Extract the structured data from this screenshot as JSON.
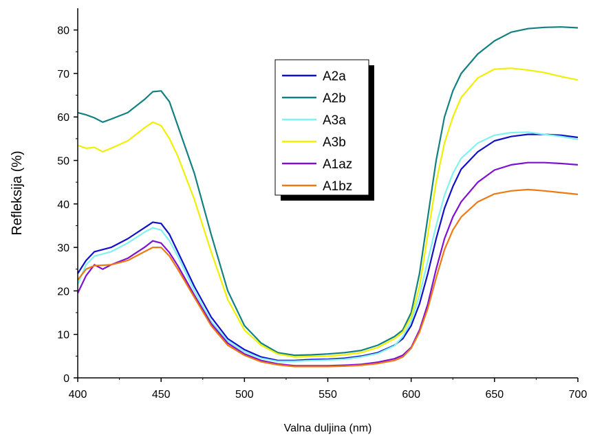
{
  "chart_data": {
    "type": "line",
    "xlabel": "Valna duljina (nm)",
    "ylabel": "Refleksija (%)",
    "xlim": [
      400,
      700
    ],
    "ylim": [
      0,
      85
    ],
    "xticks": [
      "400",
      "450",
      "500",
      "550",
      "600",
      "650",
      "700"
    ],
    "yticks": [
      "0",
      "10",
      "20",
      "30",
      "40",
      "50",
      "60",
      "70",
      "80"
    ],
    "grid": false,
    "legend_position": "top-center",
    "series": [
      {
        "name": "A2a",
        "color": "#1010c8",
        "points": [
          [
            400,
            24
          ],
          [
            405,
            27
          ],
          [
            410,
            29
          ],
          [
            420,
            30
          ],
          [
            430,
            32
          ],
          [
            440,
            34.5
          ],
          [
            445,
            35.8
          ],
          [
            450,
            35.5
          ],
          [
            455,
            33
          ],
          [
            460,
            29
          ],
          [
            470,
            21
          ],
          [
            480,
            14
          ],
          [
            490,
            9
          ],
          [
            500,
            6.5
          ],
          [
            510,
            4.8
          ],
          [
            520,
            4.0
          ],
          [
            530,
            4.0
          ],
          [
            540,
            4.2
          ],
          [
            550,
            4.3
          ],
          [
            560,
            4.5
          ],
          [
            570,
            5.0
          ],
          [
            580,
            5.8
          ],
          [
            590,
            7.5
          ],
          [
            595,
            9
          ],
          [
            600,
            12
          ],
          [
            605,
            17
          ],
          [
            610,
            24
          ],
          [
            615,
            32
          ],
          [
            620,
            39
          ],
          [
            625,
            44
          ],
          [
            630,
            48
          ],
          [
            640,
            52
          ],
          [
            650,
            54.5
          ],
          [
            660,
            55.5
          ],
          [
            670,
            56
          ],
          [
            680,
            56
          ],
          [
            690,
            55.8
          ],
          [
            700,
            55.3
          ]
        ]
      },
      {
        "name": "A2b",
        "color": "#128080",
        "points": [
          [
            400,
            61
          ],
          [
            405,
            60.5
          ],
          [
            410,
            59.8
          ],
          [
            415,
            58.8
          ],
          [
            420,
            59.5
          ],
          [
            430,
            61
          ],
          [
            440,
            64
          ],
          [
            445,
            65.8
          ],
          [
            450,
            66
          ],
          [
            455,
            63.5
          ],
          [
            460,
            58
          ],
          [
            470,
            47
          ],
          [
            480,
            33
          ],
          [
            490,
            20
          ],
          [
            500,
            12
          ],
          [
            510,
            8
          ],
          [
            520,
            5.8
          ],
          [
            530,
            5.2
          ],
          [
            540,
            5.3
          ],
          [
            550,
            5.5
          ],
          [
            560,
            5.8
          ],
          [
            570,
            6.3
          ],
          [
            580,
            7.5
          ],
          [
            590,
            9.5
          ],
          [
            595,
            11
          ],
          [
            600,
            15
          ],
          [
            605,
            24
          ],
          [
            610,
            37
          ],
          [
            615,
            50
          ],
          [
            620,
            60
          ],
          [
            625,
            66
          ],
          [
            630,
            70
          ],
          [
            640,
            74.5
          ],
          [
            650,
            77.5
          ],
          [
            660,
            79.5
          ],
          [
            670,
            80.3
          ],
          [
            680,
            80.6
          ],
          [
            690,
            80.7
          ],
          [
            700,
            80.5
          ]
        ]
      },
      {
        "name": "A3a",
        "color": "#7ef3f0",
        "points": [
          [
            400,
            21.5
          ],
          [
            405,
            26
          ],
          [
            410,
            28
          ],
          [
            420,
            29
          ],
          [
            430,
            31
          ],
          [
            440,
            33.5
          ],
          [
            445,
            34.5
          ],
          [
            450,
            34
          ],
          [
            455,
            31.5
          ],
          [
            460,
            28
          ],
          [
            470,
            20
          ],
          [
            480,
            13
          ],
          [
            490,
            8.5
          ],
          [
            500,
            6
          ],
          [
            510,
            4.5
          ],
          [
            520,
            3.8
          ],
          [
            530,
            3.8
          ],
          [
            540,
            4.0
          ],
          [
            550,
            4.1
          ],
          [
            560,
            4.3
          ],
          [
            570,
            4.8
          ],
          [
            580,
            5.6
          ],
          [
            590,
            7.4
          ],
          [
            595,
            9.5
          ],
          [
            600,
            13
          ],
          [
            605,
            19
          ],
          [
            610,
            27
          ],
          [
            615,
            35
          ],
          [
            620,
            42
          ],
          [
            625,
            47
          ],
          [
            630,
            50.5
          ],
          [
            640,
            54
          ],
          [
            650,
            55.8
          ],
          [
            660,
            56.4
          ],
          [
            670,
            56.5
          ],
          [
            680,
            56
          ],
          [
            690,
            55.5
          ],
          [
            700,
            54.8
          ]
        ]
      },
      {
        "name": "A3b",
        "color": "#f0f000",
        "points": [
          [
            400,
            53.5
          ],
          [
            405,
            52.8
          ],
          [
            410,
            53
          ],
          [
            415,
            52
          ],
          [
            420,
            52.8
          ],
          [
            430,
            54.5
          ],
          [
            440,
            57.5
          ],
          [
            445,
            58.8
          ],
          [
            450,
            58
          ],
          [
            455,
            55
          ],
          [
            460,
            51
          ],
          [
            470,
            41
          ],
          [
            480,
            29
          ],
          [
            490,
            18
          ],
          [
            500,
            11
          ],
          [
            510,
            7.5
          ],
          [
            520,
            5.5
          ],
          [
            530,
            4.8
          ],
          [
            540,
            4.9
          ],
          [
            550,
            5.0
          ],
          [
            560,
            5.3
          ],
          [
            570,
            5.8
          ],
          [
            580,
            7.0
          ],
          [
            590,
            9.0
          ],
          [
            595,
            10.5
          ],
          [
            600,
            14
          ],
          [
            605,
            21
          ],
          [
            610,
            33
          ],
          [
            615,
            45
          ],
          [
            620,
            54
          ],
          [
            625,
            60
          ],
          [
            630,
            64.5
          ],
          [
            640,
            69
          ],
          [
            650,
            71
          ],
          [
            660,
            71.2
          ],
          [
            670,
            70.8
          ],
          [
            680,
            70.2
          ],
          [
            690,
            69.3
          ],
          [
            700,
            68.5
          ]
        ]
      },
      {
        "name": "A1az",
        "color": "#7e10d0",
        "points": [
          [
            400,
            19.5
          ],
          [
            405,
            23.5
          ],
          [
            410,
            26
          ],
          [
            415,
            25
          ],
          [
            420,
            26
          ],
          [
            430,
            27.5
          ],
          [
            440,
            30
          ],
          [
            445,
            31.5
          ],
          [
            450,
            31
          ],
          [
            455,
            28.8
          ],
          [
            460,
            25.8
          ],
          [
            470,
            19
          ],
          [
            480,
            12.5
          ],
          [
            490,
            8
          ],
          [
            500,
            5.5
          ],
          [
            510,
            4
          ],
          [
            520,
            3.2
          ],
          [
            530,
            2.8
          ],
          [
            540,
            2.8
          ],
          [
            550,
            2.8
          ],
          [
            560,
            2.9
          ],
          [
            570,
            3.1
          ],
          [
            580,
            3.6
          ],
          [
            590,
            4.4
          ],
          [
            595,
            5.2
          ],
          [
            600,
            7
          ],
          [
            605,
            11
          ],
          [
            610,
            17
          ],
          [
            615,
            25
          ],
          [
            620,
            32
          ],
          [
            625,
            37
          ],
          [
            630,
            40.5
          ],
          [
            640,
            45
          ],
          [
            650,
            47.8
          ],
          [
            660,
            49
          ],
          [
            670,
            49.5
          ],
          [
            680,
            49.5
          ],
          [
            690,
            49.3
          ],
          [
            700,
            49
          ]
        ]
      },
      {
        "name": "A1bz",
        "color": "#f07810",
        "points": [
          [
            400,
            22.5
          ],
          [
            405,
            25
          ],
          [
            410,
            25.8
          ],
          [
            420,
            26
          ],
          [
            430,
            27
          ],
          [
            440,
            29
          ],
          [
            445,
            30
          ],
          [
            450,
            30
          ],
          [
            455,
            28
          ],
          [
            460,
            25
          ],
          [
            470,
            18.5
          ],
          [
            480,
            12
          ],
          [
            490,
            7.5
          ],
          [
            500,
            5.2
          ],
          [
            510,
            3.7
          ],
          [
            520,
            3.0
          ],
          [
            530,
            2.6
          ],
          [
            540,
            2.6
          ],
          [
            550,
            2.6
          ],
          [
            560,
            2.7
          ],
          [
            570,
            2.9
          ],
          [
            580,
            3.3
          ],
          [
            590,
            4.0
          ],
          [
            595,
            4.8
          ],
          [
            600,
            6.8
          ],
          [
            605,
            10.5
          ],
          [
            610,
            16
          ],
          [
            615,
            23
          ],
          [
            620,
            29.5
          ],
          [
            625,
            34
          ],
          [
            630,
            37
          ],
          [
            640,
            40.5
          ],
          [
            650,
            42.3
          ],
          [
            660,
            43
          ],
          [
            670,
            43.3
          ],
          [
            680,
            43
          ],
          [
            690,
            42.6
          ],
          [
            700,
            42.2
          ]
        ]
      }
    ]
  }
}
